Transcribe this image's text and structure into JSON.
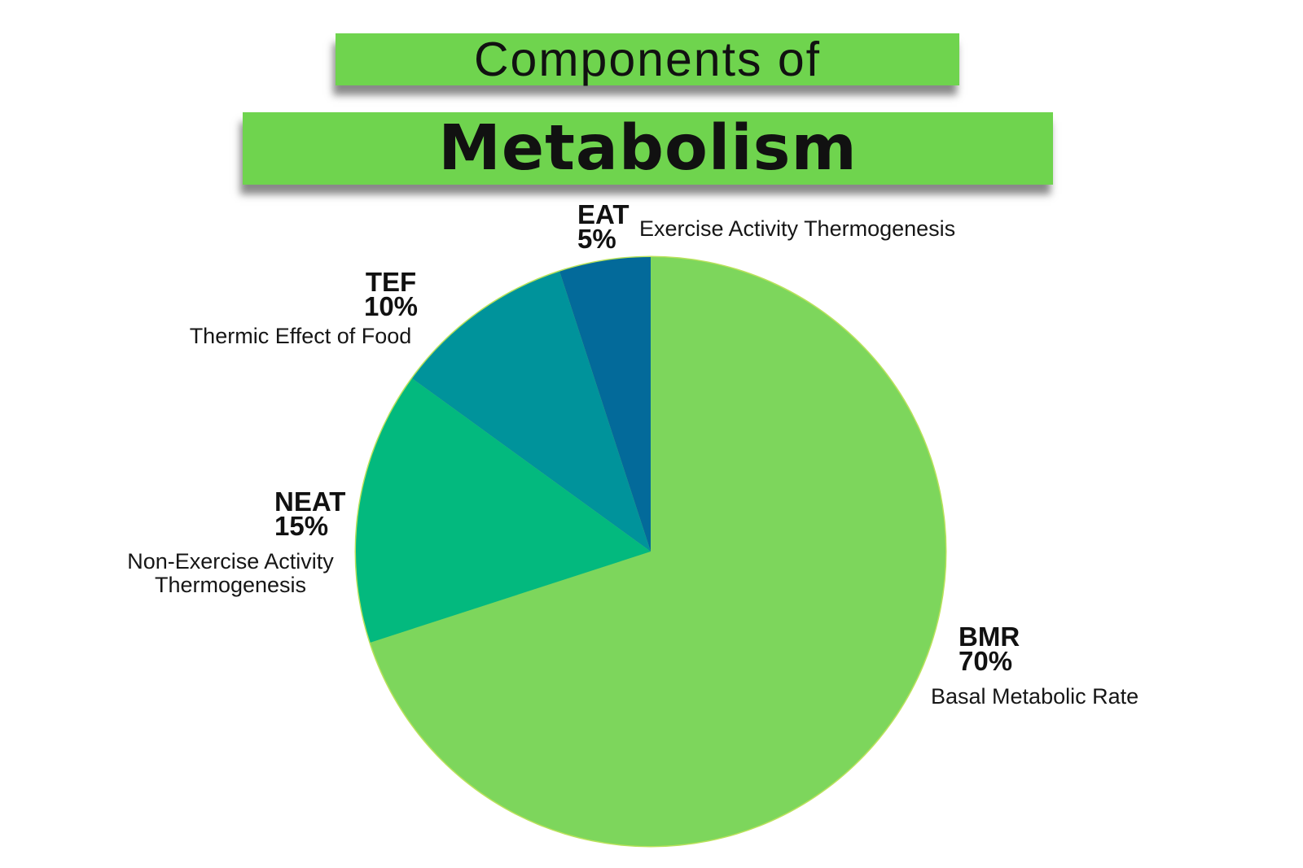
{
  "title": {
    "line1": "Components of",
    "line2": "Metabolism"
  },
  "colors": {
    "banner_green": "#6FD44E",
    "pie_rim_green": "#B9E25B",
    "bmr_green": "#7DD65C",
    "neat_emerald": "#03B97E",
    "tef_teal": "#00939B",
    "eat_blue": "#036A9A",
    "text_black": "#111111"
  },
  "chart_data": {
    "type": "pie",
    "title": "Components of Metabolism",
    "start_angle_deg": 0,
    "direction": "clockwise",
    "legend_position": "labels-around-slices",
    "slices": [
      {
        "label": "BMR",
        "pct_label": "70%",
        "value_pct": 70,
        "full_name": "Basal Metabolic Rate",
        "color": "#7DD65C"
      },
      {
        "label": "NEAT",
        "pct_label": "15%",
        "value_pct": 15,
        "full_name": "Non-Exercise Activity Thermogenesis",
        "color": "#03B97E"
      },
      {
        "label": "TEF",
        "pct_label": "10%",
        "value_pct": 10,
        "full_name": "Thermic Effect of Food",
        "color": "#00939B"
      },
      {
        "label": "EAT",
        "pct_label": "5%",
        "value_pct": 5,
        "full_name": "Exercise Activity Thermogenesis",
        "color": "#036A9A"
      }
    ]
  }
}
